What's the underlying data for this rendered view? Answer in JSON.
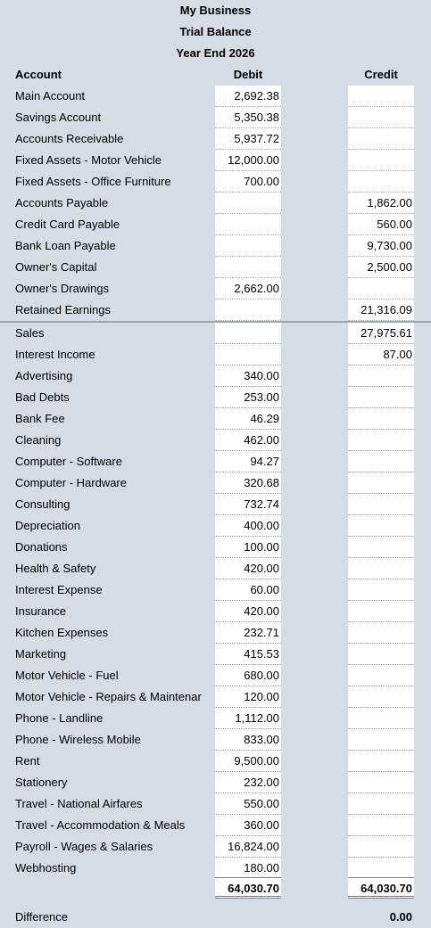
{
  "header": {
    "company": "My Business",
    "report": "Trial Balance",
    "period": "Year End 2026"
  },
  "columns": {
    "account": "Account",
    "debit": "Debit",
    "credit": "Credit"
  },
  "rows": [
    {
      "account": "Main Account",
      "debit": "2,692.38",
      "credit": ""
    },
    {
      "account": "Savings Account",
      "debit": "5,350.38",
      "credit": ""
    },
    {
      "account": "Accounts Receivable",
      "debit": "5,937.72",
      "credit": ""
    },
    {
      "account": "Fixed Assets - Motor Vehicle",
      "debit": "12,000.00",
      "credit": ""
    },
    {
      "account": "Fixed Assets - Office Furniture",
      "debit": "700.00",
      "credit": ""
    },
    {
      "account": "Accounts Payable",
      "debit": "",
      "credit": "1,862.00"
    },
    {
      "account": "Credit Card Payable",
      "debit": "",
      "credit": "560.00"
    },
    {
      "account": "Bank Loan Payable",
      "debit": "",
      "credit": "9,730.00"
    },
    {
      "account": "Owner's Capital",
      "debit": "",
      "credit": "2,500.00"
    },
    {
      "account": "Owner's Drawings",
      "debit": "2,662.00",
      "credit": ""
    },
    {
      "account": "Retained Earnings",
      "debit": "",
      "credit": "21,316.09"
    },
    {
      "account": "Sales",
      "debit": "",
      "credit": "27,975.61"
    },
    {
      "account": "Interest Income",
      "debit": "",
      "credit": "87.00"
    },
    {
      "account": "Advertising",
      "debit": "340.00",
      "credit": ""
    },
    {
      "account": "Bad Debts",
      "debit": "253.00",
      "credit": ""
    },
    {
      "account": "Bank Fee",
      "debit": "46.29",
      "credit": ""
    },
    {
      "account": "Cleaning",
      "debit": "462.00",
      "credit": ""
    },
    {
      "account": "Computer - Software",
      "debit": "94.27",
      "credit": ""
    },
    {
      "account": "Computer - Hardware",
      "debit": "320.68",
      "credit": ""
    },
    {
      "account": "Consulting",
      "debit": "732.74",
      "credit": ""
    },
    {
      "account": "Depreciation",
      "debit": "400.00",
      "credit": ""
    },
    {
      "account": "Donations",
      "debit": "100.00",
      "credit": ""
    },
    {
      "account": "Health & Safety",
      "debit": "420.00",
      "credit": ""
    },
    {
      "account": "Interest Expense",
      "debit": "60.00",
      "credit": ""
    },
    {
      "account": "Insurance",
      "debit": "420.00",
      "credit": ""
    },
    {
      "account": "Kitchen Expenses",
      "debit": "232.71",
      "credit": ""
    },
    {
      "account": "Marketing",
      "debit": "415.53",
      "credit": ""
    },
    {
      "account": "Motor Vehicle - Fuel",
      "debit": "680.00",
      "credit": ""
    },
    {
      "account": "Motor Vehicle - Repairs & Maintenar",
      "debit": "120.00",
      "credit": ""
    },
    {
      "account": "Phone - Landline",
      "debit": "1,112.00",
      "credit": ""
    },
    {
      "account": "Phone - Wireless Mobile",
      "debit": "833.00",
      "credit": ""
    },
    {
      "account": "Rent",
      "debit": "9,500.00",
      "credit": ""
    },
    {
      "account": "Stationery",
      "debit": "232.00",
      "credit": ""
    },
    {
      "account": "Travel - National Airfares",
      "debit": "550.00",
      "credit": ""
    },
    {
      "account": "Travel - Accommodation & Meals",
      "debit": "360.00",
      "credit": ""
    },
    {
      "account": "Payroll - Wages & Salaries",
      "debit": "16,824.00",
      "credit": ""
    },
    {
      "account": "Webhosting",
      "debit": "180.00",
      "credit": ""
    }
  ],
  "totals": {
    "debit": "64,030.70",
    "credit": "64,030.70"
  },
  "difference": {
    "label": "Difference",
    "value": "0.00"
  }
}
